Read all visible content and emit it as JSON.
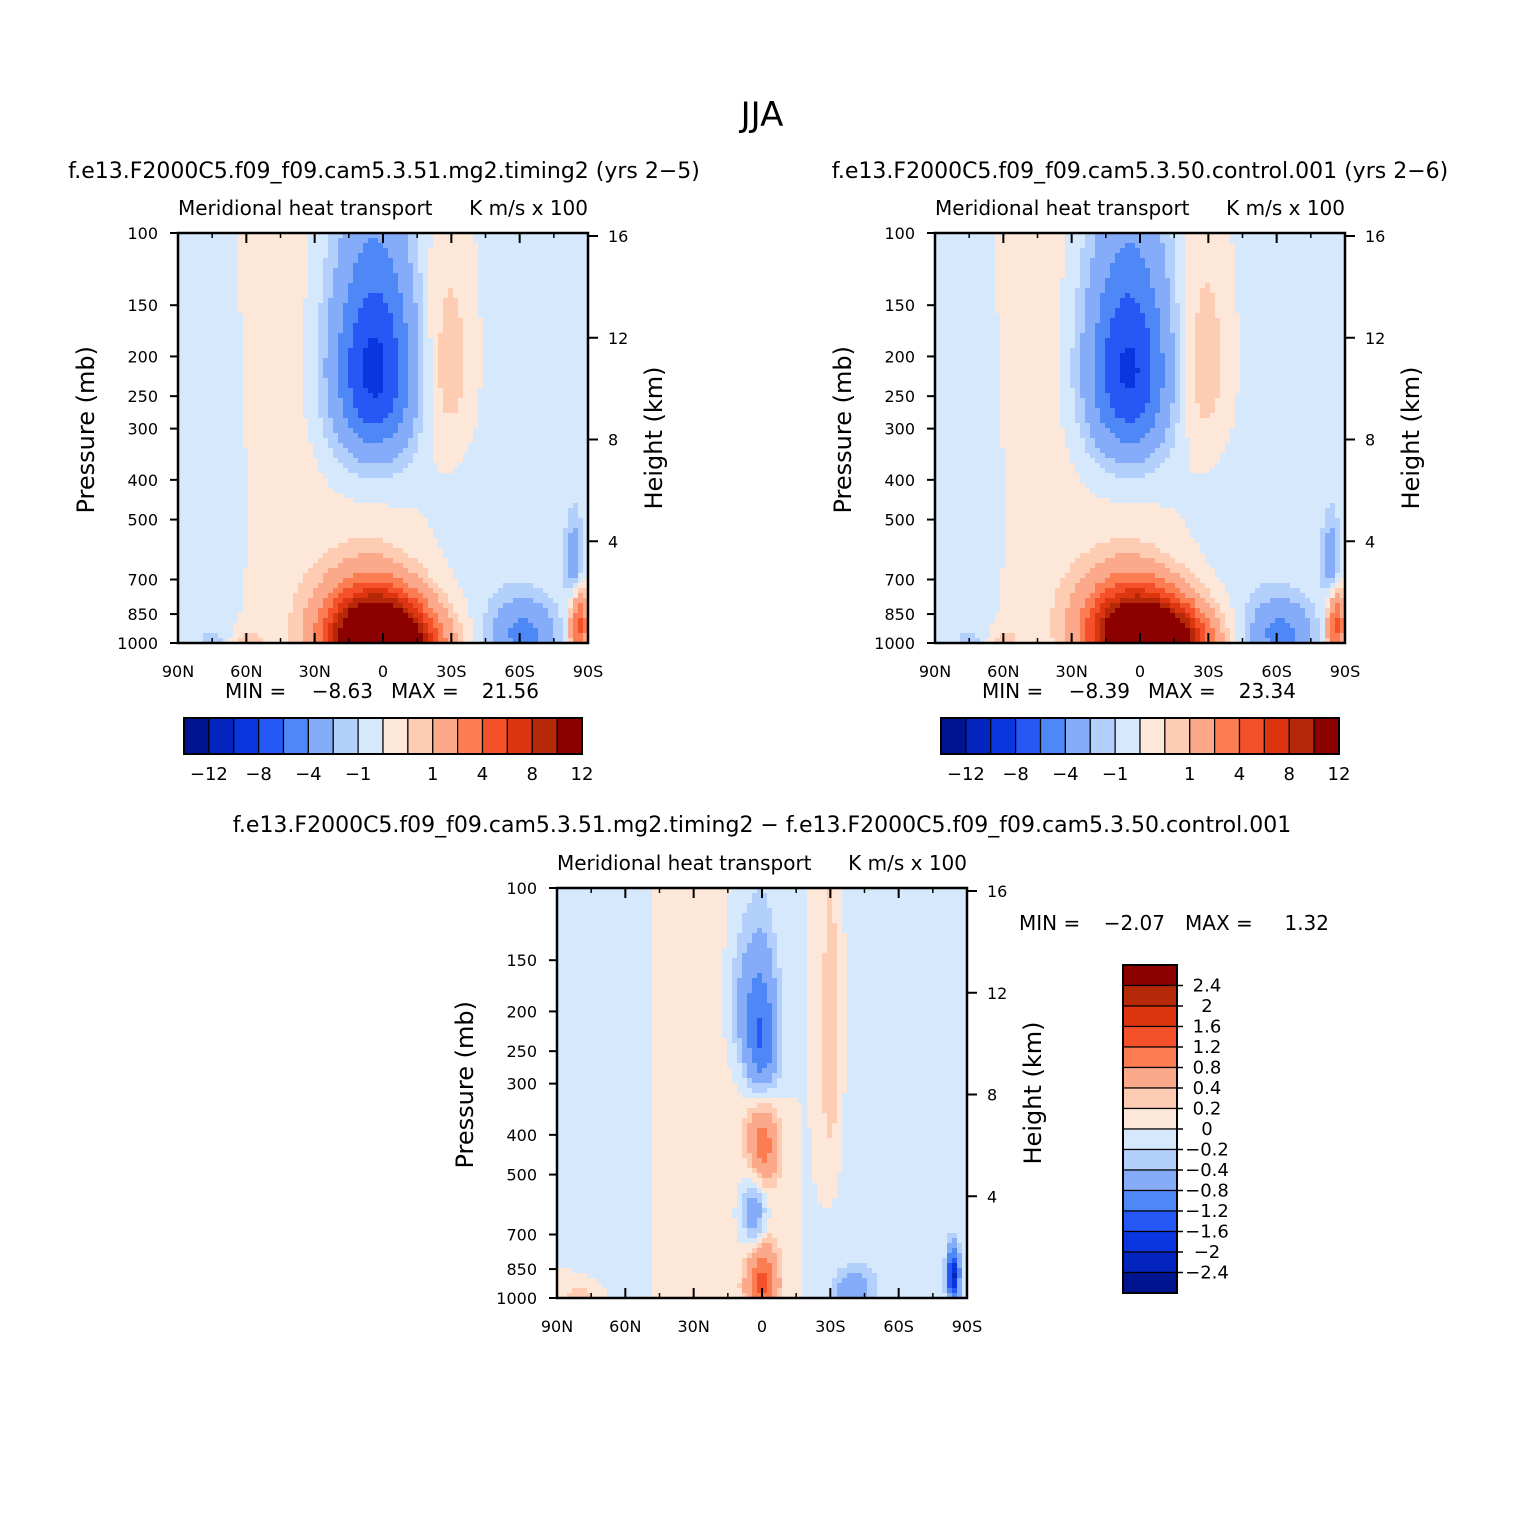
{
  "page_title": "JJA",
  "colors": {
    "neg": [
      "#d6e9fc",
      "#b3cffb",
      "#85acf8",
      "#4e87f6",
      "#2658f6",
      "#0a36e0",
      "#0424c0",
      "#00148f"
    ],
    "pos": [
      "#fde7d8",
      "#fdccb3",
      "#fca98b",
      "#fc7d52",
      "#f4502a",
      "#dc3510",
      "#b52808",
      "#8c0000"
    ]
  },
  "chart_data": [
    {
      "id": "panel_test",
      "type": "heatmap",
      "header": "f.e13.F2000C5.f09_f09.cam5.3.51.mg2.timing2 (yrs 2−5)",
      "title": "Meridional heat transport",
      "units": "K m/s x 100",
      "xlabel": "",
      "ylabel": "Pressure (mb)",
      "ylabel_right": "Height (km)",
      "x_ticks": [
        "90N",
        "60N",
        "30N",
        "0",
        "30S",
        "60S",
        "90S"
      ],
      "y_ticks": [
        "100",
        "150",
        "200",
        "250",
        "300",
        "400",
        "500",
        "700",
        "850",
        "1000"
      ],
      "y_right_ticks": [
        "16",
        "12",
        "8",
        "4"
      ],
      "min_label": "MIN =",
      "min_value": "−8.63",
      "max_label": "MAX =",
      "max_value": "21.56",
      "colorbar_labels": [
        "−12",
        "−8",
        "−4",
        "−1",
        "1",
        "4",
        "8",
        "12"
      ],
      "features": [
        {
          "lat": 0.0,
          "p": 1000,
          "v": 21.56,
          "slat": 15,
          "sp": 140
        },
        {
          "lat": 7.0,
          "p": 850,
          "v": 6.0,
          "slat": 14,
          "sp": 150
        },
        {
          "lat": 4.0,
          "p": 215,
          "v": -8.63,
          "slat": 13,
          "sp": 90
        },
        {
          "lat": -28.0,
          "p": 210,
          "v": 2.0,
          "slat": 9,
          "sp": 90
        },
        {
          "lat": -62.0,
          "p": 950,
          "v": -4.5,
          "slat": 10,
          "sp": 120
        },
        {
          "lat": -86.0,
          "p": 900,
          "v": 7.0,
          "slat": 3,
          "sp": 120
        },
        {
          "lat": -84.0,
          "p": 650,
          "v": -3.5,
          "slat": 3,
          "sp": 120
        },
        {
          "lat": 45.0,
          "p": 300,
          "v": 0.6,
          "slat": 15,
          "sp": 600
        },
        {
          "lat": 68.0,
          "p": 450,
          "v": -0.6,
          "slat": 8,
          "sp": 300
        },
        {
          "lat": -50.0,
          "p": 500,
          "v": -0.6,
          "slat": 16,
          "sp": 500
        },
        {
          "lat": 75.0,
          "p": 980,
          "v": -1.4,
          "slat": 6,
          "sp": 40
        },
        {
          "lat": 60.0,
          "p": 990,
          "v": 1.6,
          "slat": 5,
          "sp": 40
        }
      ]
    },
    {
      "id": "panel_control",
      "type": "heatmap",
      "header": "f.e13.F2000C5.f09_f09.cam5.3.50.control.001 (yrs 2−6)",
      "title": "Meridional heat transport",
      "units": "K m/s x 100",
      "xlabel": "",
      "ylabel": "Pressure (mb)",
      "ylabel_right": "Height (km)",
      "x_ticks": [
        "90N",
        "60N",
        "30N",
        "0",
        "30S",
        "60S",
        "90S"
      ],
      "y_ticks": [
        "100",
        "150",
        "200",
        "250",
        "300",
        "400",
        "500",
        "700",
        "850",
        "1000"
      ],
      "y_right_ticks": [
        "16",
        "12",
        "8",
        "4"
      ],
      "min_label": "MIN =",
      "min_value": "−8.39",
      "max_label": "MAX =",
      "max_value": "23.34",
      "colorbar_labels": [
        "−12",
        "−8",
        "−4",
        "−1",
        "1",
        "4",
        "8",
        "12"
      ],
      "features": [
        {
          "lat": -5.0,
          "p": 1000,
          "v": 23.34,
          "slat": 15,
          "sp": 140
        },
        {
          "lat": 7.0,
          "p": 850,
          "v": 6.0,
          "slat": 14,
          "sp": 150
        },
        {
          "lat": 5.0,
          "p": 215,
          "v": -8.39,
          "slat": 13,
          "sp": 90
        },
        {
          "lat": -28.0,
          "p": 210,
          "v": 2.0,
          "slat": 9,
          "sp": 90
        },
        {
          "lat": -62.0,
          "p": 950,
          "v": -4.5,
          "slat": 10,
          "sp": 120
        },
        {
          "lat": -86.0,
          "p": 900,
          "v": 7.0,
          "slat": 3,
          "sp": 120
        },
        {
          "lat": -84.0,
          "p": 650,
          "v": -3.5,
          "slat": 3,
          "sp": 120
        },
        {
          "lat": 45.0,
          "p": 300,
          "v": 0.6,
          "slat": 15,
          "sp": 600
        },
        {
          "lat": 68.0,
          "p": 450,
          "v": -0.6,
          "slat": 8,
          "sp": 300
        },
        {
          "lat": -50.0,
          "p": 500,
          "v": -0.6,
          "slat": 16,
          "sp": 500
        },
        {
          "lat": 75.0,
          "p": 980,
          "v": -1.4,
          "slat": 6,
          "sp": 40
        },
        {
          "lat": 60.0,
          "p": 990,
          "v": 1.6,
          "slat": 5,
          "sp": 40
        }
      ]
    },
    {
      "id": "panel_diff",
      "type": "heatmap",
      "header": "f.e13.F2000C5.f09_f09.cam5.3.51.mg2.timing2 − f.e13.F2000C5.f09_f09.cam5.3.50.control.001",
      "title": "Meridional heat transport",
      "units": "K m/s x 100",
      "xlabel": "",
      "ylabel": "Pressure (mb)",
      "ylabel_right": "Height (km)",
      "x_ticks": [
        "90N",
        "60N",
        "30N",
        "0",
        "30S",
        "60S",
        "90S"
      ],
      "y_ticks": [
        "100",
        "150",
        "200",
        "250",
        "300",
        "400",
        "500",
        "700",
        "850",
        "1000"
      ],
      "y_right_ticks": [
        "16",
        "12",
        "8",
        "4"
      ],
      "min_label": "MIN =",
      "min_value": "−2.07",
      "max_label": "MAX =",
      "max_value": "1.32",
      "colorbar_labels": [
        "2.4",
        "2",
        "1.6",
        "1.2",
        "0.8",
        "0.4",
        "0.2",
        "0",
        "−0.2",
        "−0.4",
        "−0.8",
        "−1.2",
        "−1.6",
        "−2",
        "−2.4"
      ],
      "features": [
        {
          "lat": 0.0,
          "p": 240,
          "v": -1.3,
          "slat": 5,
          "sp": 70
        },
        {
          "lat": 0.0,
          "p": 420,
          "v": 1.1,
          "slat": 5,
          "sp": 90
        },
        {
          "lat": 3.0,
          "p": 620,
          "v": -0.8,
          "slat": 4,
          "sp": 110
        },
        {
          "lat": 0.0,
          "p": 920,
          "v": 1.32,
          "slat": 5,
          "sp": 150
        },
        {
          "lat": -40.0,
          "p": 960,
          "v": -0.7,
          "slat": 6,
          "sp": 80
        },
        {
          "lat": -84.0,
          "p": 880,
          "v": -2.07,
          "slat": 2,
          "sp": 90
        },
        {
          "lat": -30.0,
          "p": 250,
          "v": 0.4,
          "slat": 3,
          "sp": 140
        },
        {
          "lat": 30.0,
          "p": 450,
          "v": 0.15,
          "slat": 12,
          "sp": 400
        },
        {
          "lat": 60.0,
          "p": 380,
          "v": -0.15,
          "slat": 8,
          "sp": 400
        },
        {
          "lat": -55.0,
          "p": 450,
          "v": -0.15,
          "slat": 12,
          "sp": 400
        },
        {
          "lat": 8.0,
          "p": 190,
          "v": -0.4,
          "slat": 5,
          "sp": 50
        },
        {
          "lat": 80.0,
          "p": 990,
          "v": 0.3,
          "slat": 6,
          "sp": 40
        }
      ]
    }
  ]
}
